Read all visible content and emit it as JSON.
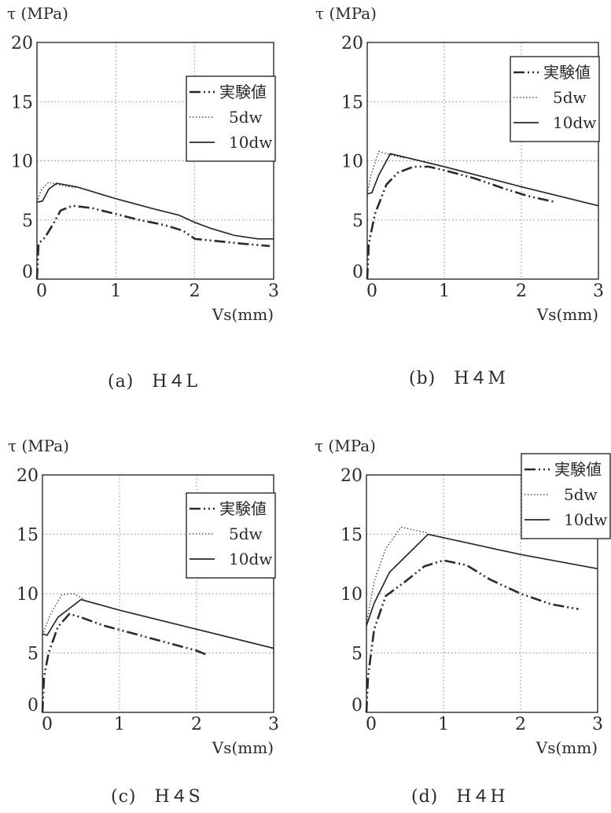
{
  "chart_data": [
    {
      "type": "line",
      "caption": "(a)　H４L",
      "ylabel": "τ (MPa)",
      "xlabel": "Vs(mm)",
      "xlim": [
        0,
        3
      ],
      "ylim": [
        0,
        20
      ],
      "xticks": [
        "0",
        "1",
        "2",
        "3"
      ],
      "yticks": [
        "0",
        "5",
        "10",
        "15",
        "20"
      ],
      "grid": true,
      "legend_position": "right",
      "series": [
        {
          "name": "実験値",
          "style": "dash-dot",
          "points": [
            [
              0.0,
              0.0
            ],
            [
              0.02,
              3.0
            ],
            [
              0.1,
              3.5
            ],
            [
              0.2,
              4.6
            ],
            [
              0.3,
              5.8
            ],
            [
              0.45,
              6.2
            ],
            [
              0.7,
              6.0
            ],
            [
              1.0,
              5.5
            ],
            [
              1.3,
              5.0
            ],
            [
              1.6,
              4.6
            ],
            [
              1.85,
              4.1
            ],
            [
              2.0,
              3.4
            ],
            [
              2.3,
              3.2
            ],
            [
              2.6,
              3.0
            ],
            [
              2.95,
              2.8
            ]
          ]
        },
        {
          "name": "5dw",
          "style": "dotted",
          "points": [
            [
              0.0,
              6.5
            ],
            [
              0.05,
              7.5
            ],
            [
              0.15,
              8.2
            ],
            [
              0.25,
              8.0
            ],
            [
              0.5,
              7.7
            ]
          ]
        },
        {
          "name": "10dw",
          "style": "solid",
          "points": [
            [
              0.0,
              6.5
            ],
            [
              0.07,
              6.6
            ],
            [
              0.15,
              7.6
            ],
            [
              0.25,
              8.1
            ],
            [
              0.5,
              7.8
            ],
            [
              1.0,
              6.8
            ],
            [
              1.5,
              5.9
            ],
            [
              1.8,
              5.4
            ],
            [
              2.0,
              4.8
            ],
            [
              2.2,
              4.3
            ],
            [
              2.5,
              3.7
            ],
            [
              2.8,
              3.4
            ],
            [
              3.0,
              3.4
            ]
          ]
        }
      ]
    },
    {
      "type": "line",
      "caption": "(b)　H４M",
      "ylabel": "τ (MPa)",
      "xlabel": "Vs(mm)",
      "xlim": [
        0,
        3
      ],
      "ylim": [
        0,
        20
      ],
      "xticks": [
        "0",
        "1",
        "2",
        "3"
      ],
      "yticks": [
        "0",
        "5",
        "10",
        "15",
        "20"
      ],
      "grid": true,
      "legend_position": "top-right",
      "series": [
        {
          "name": "実験値",
          "style": "dash-dot",
          "points": [
            [
              0.0,
              0.0
            ],
            [
              0.02,
              3.0
            ],
            [
              0.1,
              5.5
            ],
            [
              0.25,
              8.0
            ],
            [
              0.4,
              9.0
            ],
            [
              0.6,
              9.5
            ],
            [
              0.8,
              9.5
            ],
            [
              1.0,
              9.2
            ],
            [
              1.4,
              8.5
            ],
            [
              1.8,
              7.6
            ],
            [
              2.1,
              7.0
            ],
            [
              2.45,
              6.5
            ]
          ]
        },
        {
          "name": "5dw",
          "style": "dotted",
          "points": [
            [
              0.0,
              7.2
            ],
            [
              0.05,
              8.8
            ],
            [
              0.15,
              10.8
            ],
            [
              0.25,
              10.6
            ],
            [
              0.5,
              10.2
            ]
          ]
        },
        {
          "name": "10dw",
          "style": "solid",
          "points": [
            [
              0.0,
              7.2
            ],
            [
              0.06,
              7.3
            ],
            [
              0.15,
              8.8
            ],
            [
              0.3,
              10.6
            ],
            [
              1.0,
              9.5
            ],
            [
              2.0,
              7.8
            ],
            [
              3.0,
              6.2
            ]
          ]
        }
      ]
    },
    {
      "type": "line",
      "caption": "(c)　H４S",
      "ylabel": "τ (MPa)",
      "xlabel": "Vs(mm)",
      "xlim": [
        0,
        3
      ],
      "ylim": [
        0,
        20
      ],
      "xticks": [
        "0",
        "1",
        "2",
        "3"
      ],
      "yticks": [
        "0",
        "5",
        "10",
        "15",
        "20"
      ],
      "grid": true,
      "legend_position": "right",
      "series": [
        {
          "name": "実験値",
          "style": "dash-dot",
          "points": [
            [
              0.0,
              0.0
            ],
            [
              0.02,
              3.0
            ],
            [
              0.08,
              5.0
            ],
            [
              0.2,
              7.2
            ],
            [
              0.35,
              8.3
            ],
            [
              0.5,
              8.0
            ],
            [
              0.8,
              7.3
            ],
            [
              1.2,
              6.6
            ],
            [
              1.6,
              5.9
            ],
            [
              2.0,
              5.2
            ],
            [
              2.15,
              4.8
            ]
          ]
        },
        {
          "name": "5dw",
          "style": "dotted",
          "points": [
            [
              0.0,
              6.5
            ],
            [
              0.1,
              8.2
            ],
            [
              0.25,
              9.9
            ],
            [
              0.4,
              10.0
            ],
            [
              0.55,
              9.5
            ]
          ]
        },
        {
          "name": "10dw",
          "style": "solid",
          "points": [
            [
              0.0,
              6.6
            ],
            [
              0.06,
              6.5
            ],
            [
              0.2,
              8.0
            ],
            [
              0.5,
              9.5
            ],
            [
              1.0,
              8.6
            ],
            [
              2.0,
              7.0
            ],
            [
              3.0,
              5.4
            ]
          ]
        }
      ]
    },
    {
      "type": "line",
      "caption": "(d)　H４H",
      "ylabel": "τ (MPa)",
      "xlabel": "Vs(mm)",
      "xlim": [
        0,
        3
      ],
      "ylim": [
        0,
        20
      ],
      "xticks": [
        "0",
        "1",
        "2",
        "3"
      ],
      "yticks": [
        "0",
        "5",
        "10",
        "15",
        "20"
      ],
      "grid": true,
      "legend_position": "top-right",
      "series": [
        {
          "name": "実験値",
          "style": "dash-dot",
          "points": [
            [
              0.0,
              0.0
            ],
            [
              0.02,
              3.0
            ],
            [
              0.1,
              7.0
            ],
            [
              0.25,
              9.8
            ],
            [
              0.5,
              11.0
            ],
            [
              0.75,
              12.3
            ],
            [
              1.0,
              12.8
            ],
            [
              1.3,
              12.4
            ],
            [
              1.6,
              11.2
            ],
            [
              2.0,
              10.0
            ],
            [
              2.4,
              9.1
            ],
            [
              2.75,
              8.7
            ]
          ]
        },
        {
          "name": "5dw",
          "style": "dotted",
          "points": [
            [
              0.0,
              7.5
            ],
            [
              0.1,
              11.0
            ],
            [
              0.25,
              13.8
            ],
            [
              0.45,
              15.6
            ],
            [
              0.8,
              15.1
            ]
          ]
        },
        {
          "name": "10dw",
          "style": "solid",
          "points": [
            [
              0.0,
              7.3
            ],
            [
              0.1,
              9.2
            ],
            [
              0.3,
              11.8
            ],
            [
              0.8,
              15.0
            ],
            [
              1.5,
              14.0
            ],
            [
              2.0,
              13.3
            ],
            [
              3.0,
              12.1
            ]
          ]
        }
      ]
    }
  ]
}
